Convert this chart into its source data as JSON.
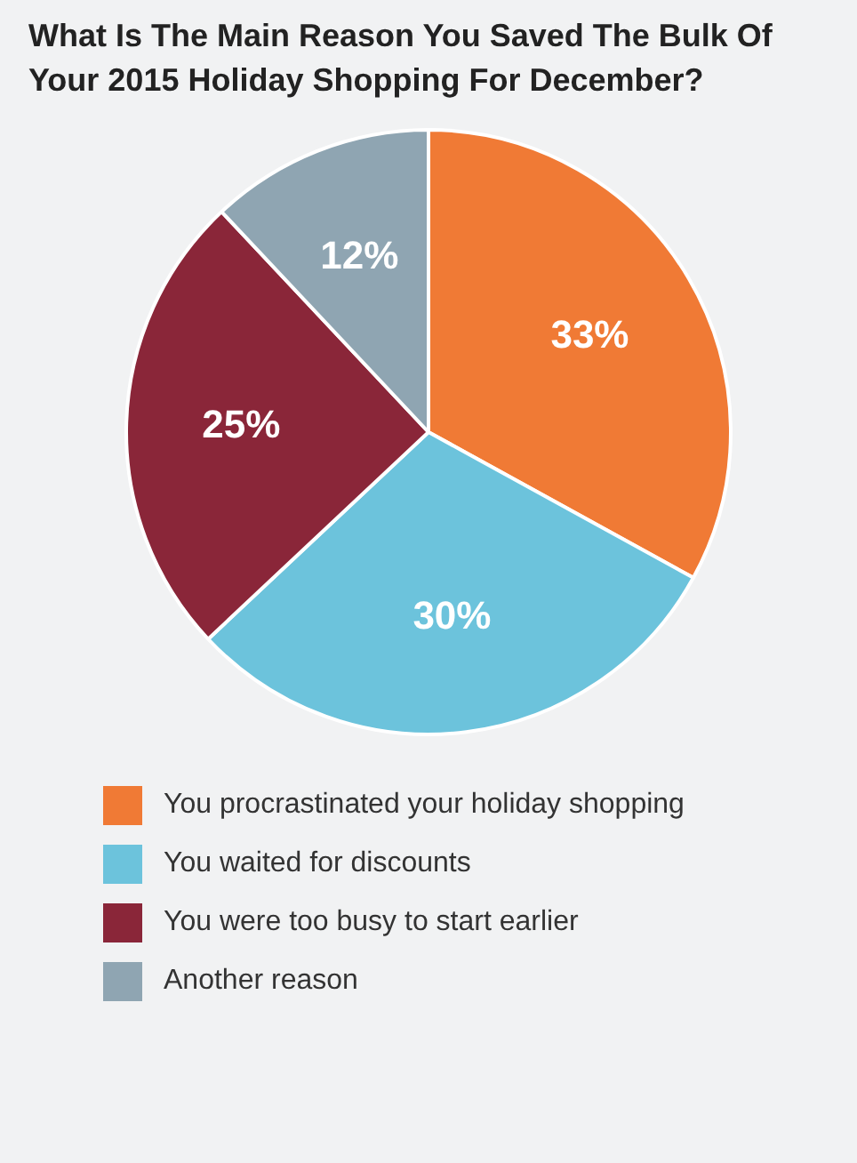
{
  "chart_data": {
    "type": "pie",
    "title": "What Is The Main Reason You Saved The Bulk Of Your 2015 Holiday Shopping For December?",
    "categories": [
      "You procrastinated your holiday shopping",
      "You waited for discounts",
      "You were too busy to start earlier",
      "Another reason"
    ],
    "values": [
      33,
      30,
      25,
      12
    ],
    "value_labels": [
      "33%",
      "30%",
      "25%",
      "12%"
    ],
    "colors": [
      "#f07a35",
      "#6cc3dc",
      "#8a2639",
      "#8fa5b2"
    ],
    "legend": "bottom"
  }
}
